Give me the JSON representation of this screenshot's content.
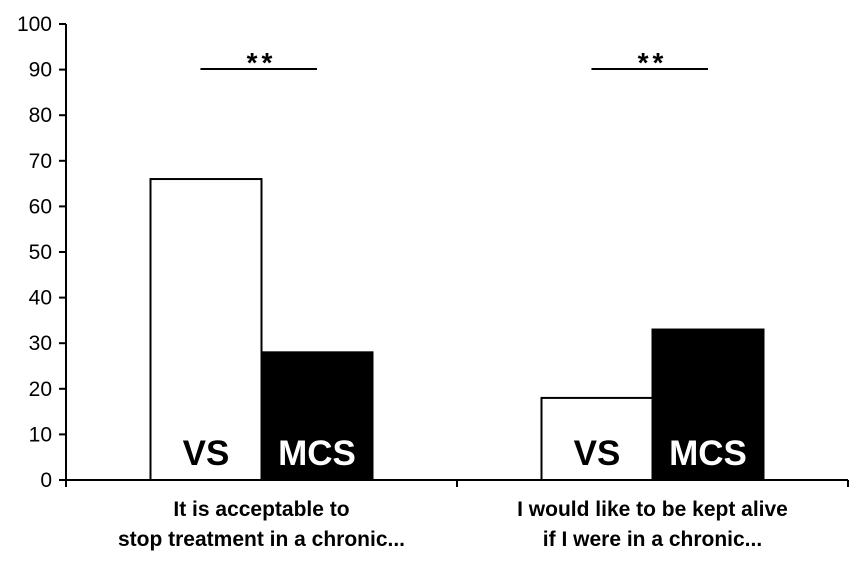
{
  "chart_data": {
    "type": "bar",
    "ylim": [
      0,
      100
    ],
    "yticks": [
      0,
      10,
      20,
      30,
      40,
      50,
      60,
      70,
      80,
      90,
      100
    ],
    "grid": false,
    "categories": [
      {
        "label_lines": [
          "It is acceptable to",
          "stop treatment in a chronic..."
        ],
        "significance": "**",
        "bars": [
          {
            "label": "VS",
            "value": 66,
            "fill": "#ffffff",
            "text_color": "#000000"
          },
          {
            "label": "MCS",
            "value": 28,
            "fill": "#000000",
            "text_color": "#ffffff"
          }
        ]
      },
      {
        "label_lines": [
          "I would like to be kept alive",
          "if I were in a chronic..."
        ],
        "significance": "**",
        "bars": [
          {
            "label": "VS",
            "value": 18,
            "fill": "#ffffff",
            "text_color": "#000000"
          },
          {
            "label": "MCS",
            "value": 33,
            "fill": "#000000",
            "text_color": "#ffffff"
          }
        ]
      }
    ]
  }
}
